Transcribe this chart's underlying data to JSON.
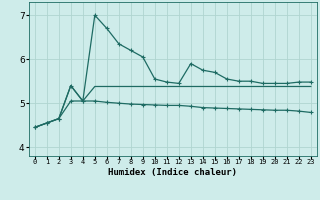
{
  "xlabel": "Humidex (Indice chaleur)",
  "ylabel": "",
  "xlim": [
    -0.5,
    23.5
  ],
  "ylim": [
    3.8,
    7.3
  ],
  "yticks": [
    4,
    5,
    6,
    7
  ],
  "xtick_labels": [
    "0",
    "1",
    "2",
    "3",
    "4",
    "5",
    "6",
    "7",
    "8",
    "9",
    "10",
    "11",
    "12",
    "13",
    "14",
    "15",
    "16",
    "17",
    "18",
    "19",
    "20",
    "21",
    "22",
    "23"
  ],
  "bg_color": "#ceecea",
  "line_color": "#1e6b63",
  "grid_color": "#b0d5d0",
  "line1_x": [
    0,
    1,
    2,
    3,
    4,
    5,
    6,
    7,
    8,
    9,
    10,
    11,
    12,
    13,
    14,
    15,
    16,
    17,
    18,
    19,
    20,
    21,
    22,
    23
  ],
  "line1_y": [
    4.45,
    4.55,
    4.65,
    5.4,
    5.05,
    7.0,
    6.7,
    6.35,
    6.2,
    6.05,
    5.55,
    5.48,
    5.45,
    5.9,
    5.75,
    5.7,
    5.55,
    5.5,
    5.5,
    5.45,
    5.45,
    5.45,
    5.48,
    5.48
  ],
  "line2_x": [
    0,
    1,
    2,
    3,
    4,
    5,
    6,
    7,
    8,
    9,
    10,
    11,
    12,
    13,
    14,
    15,
    16,
    17,
    18,
    19,
    20,
    21,
    22,
    23
  ],
  "line2_y": [
    4.45,
    4.55,
    4.65,
    5.4,
    5.05,
    5.38,
    5.38,
    5.38,
    5.38,
    5.38,
    5.38,
    5.38,
    5.38,
    5.38,
    5.38,
    5.38,
    5.38,
    5.38,
    5.38,
    5.38,
    5.38,
    5.38,
    5.38,
    5.38
  ],
  "line3_x": [
    0,
    1,
    2,
    3,
    4,
    5,
    6,
    7,
    8,
    9,
    10,
    11,
    12,
    13,
    14,
    15,
    16,
    17,
    18,
    19,
    20,
    21,
    22,
    23
  ],
  "line3_y": [
    4.45,
    4.55,
    4.65,
    5.05,
    5.05,
    5.05,
    5.02,
    5.0,
    4.98,
    4.97,
    4.96,
    4.95,
    4.95,
    4.93,
    4.9,
    4.89,
    4.88,
    4.87,
    4.86,
    4.85,
    4.84,
    4.84,
    4.82,
    4.79
  ],
  "marker": "+",
  "markersize": 3,
  "linewidth": 0.9
}
